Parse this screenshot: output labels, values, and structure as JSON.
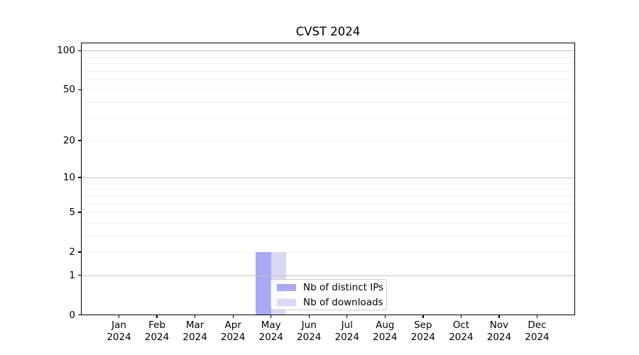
{
  "chart_data": {
    "type": "bar",
    "title": "CVST 2024",
    "categories": [
      "Jan 2024",
      "Feb 2024",
      "Mar 2024",
      "Apr 2024",
      "May 2024",
      "Jun 2024",
      "Jul 2024",
      "Aug 2024",
      "Sep 2024",
      "Oct 2024",
      "Nov 2024",
      "Dec 2024"
    ],
    "series": [
      {
        "name": "Nb of distinct IPs",
        "color": "#a9a9f1",
        "values": [
          0,
          0,
          0,
          0,
          2,
          0,
          0,
          0,
          0,
          0,
          0,
          0
        ]
      },
      {
        "name": "Nb of downloads",
        "color": "#d9d9f6",
        "values": [
          0,
          0,
          0,
          0,
          2,
          0,
          0,
          0,
          0,
          0,
          0,
          0
        ]
      }
    ],
    "xlabel": "",
    "ylabel": "",
    "yscale": "log1p",
    "ylim": [
      0,
      115
    ],
    "yticks": [
      {
        "label": "100",
        "value": 100
      },
      {
        "label": "50",
        "value": 50
      },
      {
        "label": "20",
        "value": 20
      },
      {
        "label": "10",
        "value": 10
      },
      {
        "label": "5",
        "value": 5
      },
      {
        "label": "2",
        "value": 2
      },
      {
        "label": "1",
        "value": 1
      },
      {
        "label": "0",
        "value": 0
      }
    ],
    "grid_major_values": [
      1,
      10,
      100
    ],
    "grid_minor_values": [
      2,
      3,
      4,
      5,
      6,
      7,
      8,
      9,
      20,
      30,
      40,
      50,
      60,
      70,
      80,
      90
    ],
    "grid_major_color": "#c2c2c2",
    "grid_minor_color": "#efefef",
    "legend_position": "lower-center",
    "grid": true
  }
}
